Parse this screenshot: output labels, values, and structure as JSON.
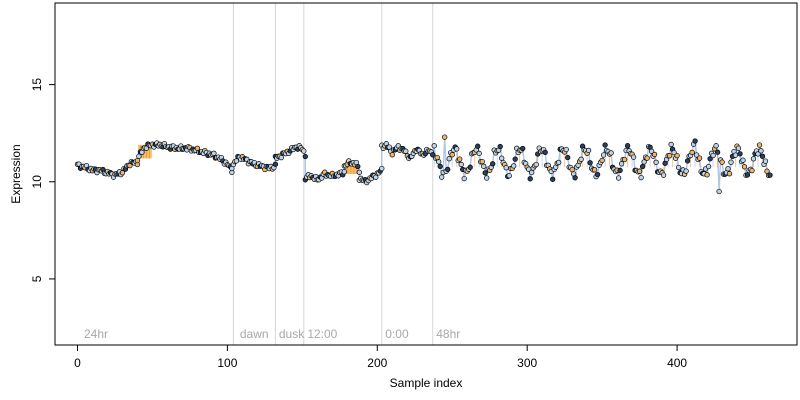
{
  "chart_data": {
    "type": "scatter",
    "title": "",
    "xlabel": "Sample index",
    "ylabel": "Expression",
    "xlim": [
      -15,
      480
    ],
    "ylim": [
      1.6,
      19.2
    ],
    "x_ticks": [
      0,
      100,
      200,
      300,
      400
    ],
    "y_ticks": [
      5,
      10,
      15
    ],
    "grid": false,
    "legend": "none",
    "colors": {
      "point_fill_light": "#bcd5ee",
      "point_fill_dark": "#2a3f5c",
      "point_fill_orange": "#f2b46a",
      "point_stroke": "#000000",
      "trace": "#9fb8dc",
      "bar": "#f0a030",
      "divider": "#d6d6d6",
      "annotation": "#a8a8a8"
    },
    "vertical_markers": [
      {
        "x": 104,
        "label": ""
      },
      {
        "x": 132,
        "label": ""
      },
      {
        "x": 151,
        "label": ""
      },
      {
        "x": 203,
        "label": ""
      },
      {
        "x": 237,
        "label": ""
      }
    ],
    "annotations": [
      {
        "x": 3,
        "label": "24hr"
      },
      {
        "x": 107,
        "label": "dawn"
      },
      {
        "x": 133,
        "label": "dusk"
      },
      {
        "x": 152,
        "label": "12:00"
      },
      {
        "x": 204,
        "label": "0:00"
      },
      {
        "x": 238,
        "label": "48hr"
      }
    ],
    "bars": [
      {
        "x0": 41,
        "x1": 49,
        "y0": 11.2,
        "y1": 11.9
      },
      {
        "x0": 179,
        "x1": 187,
        "y0": 10.4,
        "y1": 11.1
      }
    ],
    "series": [
      {
        "segments": [
          {
            "from": 0,
            "to": 40,
            "points": [
              [
                0,
                10.85
              ],
              [
                5,
                10.75
              ],
              [
                10,
                10.6
              ],
              [
                15,
                10.6
              ],
              [
                20,
                10.45
              ],
              [
                25,
                10.35
              ],
              [
                30,
                10.5
              ],
              [
                35,
                10.95
              ],
              [
                40,
                11.0
              ]
            ]
          },
          {
            "from": 40,
            "to": 70,
            "points": [
              [
                40,
                11.2
              ],
              [
                45,
                11.8
              ],
              [
                50,
                11.9
              ],
              [
                55,
                11.9
              ],
              [
                60,
                11.8
              ],
              [
                65,
                11.75
              ],
              [
                70,
                11.7
              ]
            ]
          },
          {
            "from": 70,
            "to": 103,
            "points": [
              [
                70,
                11.75
              ],
              [
                75,
                11.7
              ],
              [
                80,
                11.6
              ],
              [
                85,
                11.5
              ],
              [
                90,
                11.4
              ],
              [
                95,
                11.2
              ],
              [
                100,
                10.9
              ],
              [
                103,
                10.6
              ]
            ]
          },
          {
            "from": 103,
            "to": 132,
            "points": [
              [
                103,
                10.8
              ],
              [
                108,
                11.3
              ],
              [
                113,
                11.1
              ],
              [
                118,
                10.9
              ],
              [
                123,
                10.8
              ],
              [
                128,
                10.7
              ],
              [
                132,
                10.8
              ]
            ]
          },
          {
            "from": 132,
            "to": 152,
            "points": [
              [
                132,
                11.2
              ],
              [
                137,
                11.4
              ],
              [
                142,
                11.6
              ],
              [
                146,
                11.8
              ],
              [
                150,
                11.7
              ],
              [
                152,
                11.4
              ]
            ]
          },
          {
            "from": 152,
            "to": 178,
            "points": [
              [
                152,
                10.2
              ],
              [
                156,
                10.3
              ],
              [
                160,
                10.1
              ],
              [
                165,
                10.4
              ],
              [
                170,
                10.3
              ],
              [
                175,
                10.4
              ],
              [
                178,
                10.5
              ]
            ]
          },
          {
            "from": 178,
            "to": 188,
            "points": [
              [
                178,
                10.8
              ],
              [
                182,
                11.0
              ],
              [
                186,
                10.9
              ],
              [
                188,
                10.6
              ]
            ]
          },
          {
            "from": 188,
            "to": 203,
            "points": [
              [
                188,
                10.2
              ],
              [
                192,
                10.0
              ],
              [
                196,
                10.2
              ],
              [
                200,
                10.4
              ],
              [
                203,
                10.6
              ]
            ]
          },
          {
            "from": 203,
            "to": 237,
            "points": [
              [
                203,
                11.8
              ],
              [
                206,
                11.9
              ],
              [
                210,
                11.5
              ],
              [
                214,
                11.8
              ],
              [
                218,
                11.6
              ],
              [
                222,
                11.2
              ],
              [
                226,
                11.7
              ],
              [
                230,
                11.4
              ],
              [
                234,
                11.6
              ],
              [
                237,
                11.5
              ]
            ]
          }
        ],
        "oscillation": {
          "start": 237,
          "end": 462,
          "period": 14.5,
          "center": 11.05,
          "amplitude": 0.65
        }
      }
    ]
  }
}
